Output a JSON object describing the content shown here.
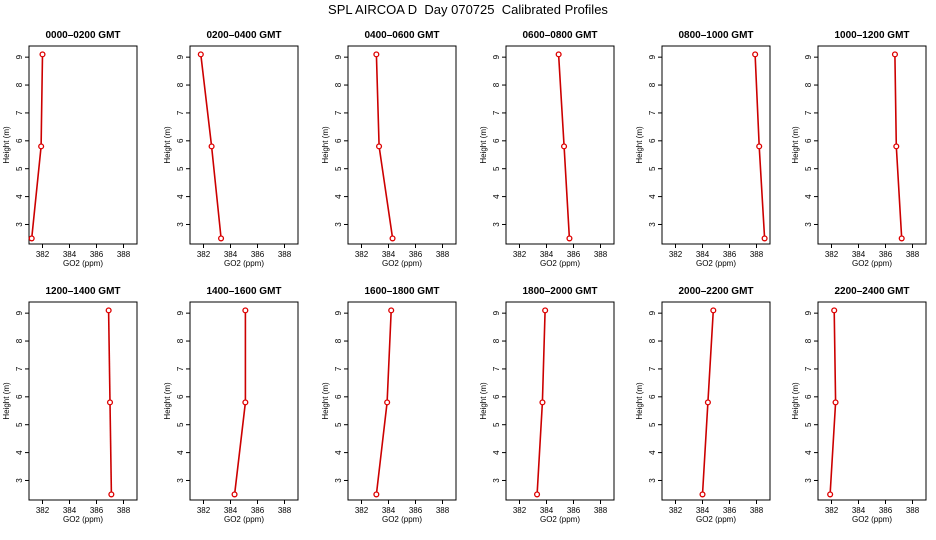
{
  "title": "SPL AIRCOA D  Day 070725  Calibrated Profiles",
  "style": {
    "line_color": "#cc0000",
    "marker_color": "#dd0000",
    "axis_color": "#000000"
  },
  "chart_data": [
    {
      "type": "line",
      "title": "0000–0200 GMT",
      "xlabel": "GO2 (ppm)",
      "ylabel": "Height (m)",
      "xlim": [
        381,
        389
      ],
      "ylim": [
        2.3,
        9.4
      ],
      "xticks": [
        382,
        384,
        386,
        388
      ],
      "yticks": [
        3,
        4,
        5,
        6,
        7,
        8,
        9
      ],
      "x": [
        381.2,
        381.9,
        382.0
      ],
      "y": [
        2.5,
        5.8,
        9.1
      ],
      "grid": false
    },
    {
      "type": "line",
      "title": "0200–0400 GMT",
      "xlabel": "GO2 (ppm)",
      "ylabel": "Height (m)",
      "xlim": [
        381,
        389
      ],
      "ylim": [
        2.3,
        9.4
      ],
      "xticks": [
        382,
        384,
        386,
        388
      ],
      "yticks": [
        3,
        4,
        5,
        6,
        7,
        8,
        9
      ],
      "x": [
        383.3,
        382.6,
        381.8
      ],
      "y": [
        2.5,
        5.8,
        9.1
      ],
      "grid": false
    },
    {
      "type": "line",
      "title": "0400–0600 GMT",
      "xlabel": "GO2 (ppm)",
      "ylabel": "Height (m)",
      "xlim": [
        381,
        389
      ],
      "ylim": [
        2.3,
        9.4
      ],
      "xticks": [
        382,
        384,
        386,
        388
      ],
      "yticks": [
        3,
        4,
        5,
        6,
        7,
        8,
        9
      ],
      "x": [
        384.3,
        383.3,
        383.1
      ],
      "y": [
        2.5,
        5.8,
        9.1
      ],
      "grid": false
    },
    {
      "type": "line",
      "title": "0600–0800 GMT",
      "xlabel": "GO2 (ppm)",
      "ylabel": "Height (m)",
      "xlim": [
        381,
        389
      ],
      "ylim": [
        2.3,
        9.4
      ],
      "xticks": [
        382,
        384,
        386,
        388
      ],
      "yticks": [
        3,
        4,
        5,
        6,
        7,
        8,
        9
      ],
      "x": [
        385.7,
        385.3,
        384.9
      ],
      "y": [
        2.5,
        5.8,
        9.1
      ],
      "grid": false
    },
    {
      "type": "line",
      "title": "0800–1000 GMT",
      "xlabel": "GO2 (ppm)",
      "ylabel": "Height (m)",
      "xlim": [
        381,
        389
      ],
      "ylim": [
        2.3,
        9.4
      ],
      "xticks": [
        382,
        384,
        386,
        388
      ],
      "yticks": [
        3,
        4,
        5,
        6,
        7,
        8,
        9
      ],
      "x": [
        388.6,
        388.2,
        387.9
      ],
      "y": [
        2.5,
        5.8,
        9.1
      ],
      "grid": false
    },
    {
      "type": "line",
      "title": "1000–1200 GMT",
      "xlabel": "GO2 (ppm)",
      "ylabel": "Height (m)",
      "xlim": [
        381,
        389
      ],
      "ylim": [
        2.3,
        9.4
      ],
      "xticks": [
        382,
        384,
        386,
        388
      ],
      "yticks": [
        3,
        4,
        5,
        6,
        7,
        8,
        9
      ],
      "x": [
        387.2,
        386.8,
        386.7
      ],
      "y": [
        2.5,
        5.8,
        9.1
      ],
      "grid": false
    },
    {
      "type": "line",
      "title": "1200–1400 GMT",
      "xlabel": "GO2 (ppm)",
      "ylabel": "Height (m)",
      "xlim": [
        381,
        389
      ],
      "ylim": [
        2.3,
        9.4
      ],
      "xticks": [
        382,
        384,
        386,
        388
      ],
      "yticks": [
        3,
        4,
        5,
        6,
        7,
        8,
        9
      ],
      "x": [
        387.1,
        387.0,
        386.9
      ],
      "y": [
        2.5,
        5.8,
        9.1
      ],
      "grid": false
    },
    {
      "type": "line",
      "title": "1400–1600 GMT",
      "xlabel": "GO2 (ppm)",
      "ylabel": "Height (m)",
      "xlim": [
        381,
        389
      ],
      "ylim": [
        2.3,
        9.4
      ],
      "xticks": [
        382,
        384,
        386,
        388
      ],
      "yticks": [
        3,
        4,
        5,
        6,
        7,
        8,
        9
      ],
      "x": [
        384.3,
        385.1,
        385.1
      ],
      "y": [
        2.5,
        5.8,
        9.1
      ],
      "grid": false
    },
    {
      "type": "line",
      "title": "1600–1800 GMT",
      "xlabel": "GO2 (ppm)",
      "ylabel": "Height (m)",
      "xlim": [
        381,
        389
      ],
      "ylim": [
        2.3,
        9.4
      ],
      "xticks": [
        382,
        384,
        386,
        388
      ],
      "yticks": [
        3,
        4,
        5,
        6,
        7,
        8,
        9
      ],
      "x": [
        383.1,
        383.9,
        384.2
      ],
      "y": [
        2.5,
        5.8,
        9.1
      ],
      "grid": false
    },
    {
      "type": "line",
      "title": "1800–2000 GMT",
      "xlabel": "GO2 (ppm)",
      "ylabel": "Height (m)",
      "xlim": [
        381,
        389
      ],
      "ylim": [
        2.3,
        9.4
      ],
      "xticks": [
        382,
        384,
        386,
        388
      ],
      "yticks": [
        3,
        4,
        5,
        6,
        7,
        8,
        9
      ],
      "x": [
        383.3,
        383.7,
        383.9
      ],
      "y": [
        2.5,
        5.8,
        9.1
      ],
      "grid": false
    },
    {
      "type": "line",
      "title": "2000–2200 GMT",
      "xlabel": "GO2 (ppm)",
      "ylabel": "Height (m)",
      "xlim": [
        381,
        389
      ],
      "ylim": [
        2.3,
        9.4
      ],
      "xticks": [
        382,
        384,
        386,
        388
      ],
      "yticks": [
        3,
        4,
        5,
        6,
        7,
        8,
        9
      ],
      "x": [
        384.0,
        384.4,
        384.8
      ],
      "y": [
        2.5,
        5.8,
        9.1
      ],
      "grid": false
    },
    {
      "type": "line",
      "title": "2200–2400 GMT",
      "xlabel": "GO2 (ppm)",
      "ylabel": "Height (m)",
      "xlim": [
        381,
        389
      ],
      "ylim": [
        2.3,
        9.4
      ],
      "xticks": [
        382,
        384,
        386,
        388
      ],
      "yticks": [
        3,
        4,
        5,
        6,
        7,
        8,
        9
      ],
      "x": [
        381.9,
        382.3,
        382.2
      ],
      "y": [
        2.5,
        5.8,
        9.1
      ],
      "grid": false
    }
  ]
}
